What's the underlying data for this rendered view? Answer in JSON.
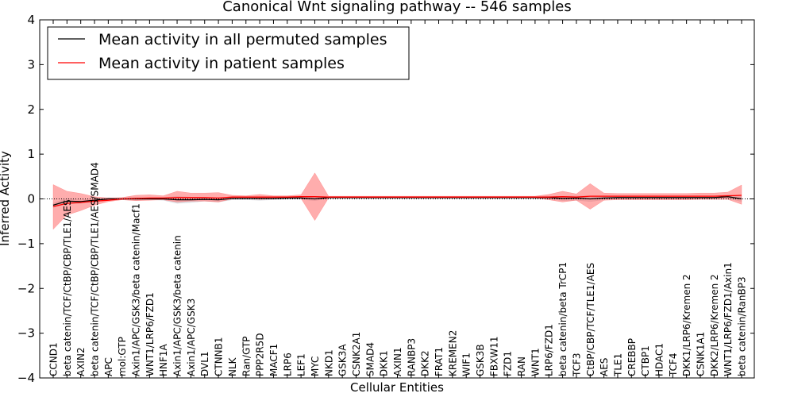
{
  "chart_data": {
    "type": "line",
    "title": "Canonical Wnt signaling pathway -- 546 samples",
    "xlabel": "Cellular Entities",
    "ylabel": "Inferred Activity",
    "ylim": [
      -4,
      4
    ],
    "yticks": [
      -4,
      -3,
      -2,
      -1,
      0,
      1,
      2,
      3,
      4
    ],
    "ytick_labels": [
      "−4",
      "−3",
      "−2",
      "−1",
      "0",
      "1",
      "2",
      "3",
      "4"
    ],
    "legend_position": "top-left",
    "categories": [
      "CCND1",
      "beta catenin/TCF/CtBP/CBP/TLE1/AES",
      "AXIN2",
      "beta catenin/TCF/CtBP/CBP/TLE1/AES/SMAD4",
      "APC",
      "mol:GTP",
      "Axin1/APC/GSK3/beta catenin/Macf1",
      "WNT1/LRP6/FZD1",
      "HNF1A",
      "Axin1/APC/GSK3/beta catenin",
      "Axin1/APC/GSK3",
      "DVL1",
      "CTNNB1",
      "NLK",
      "Ran/GTP",
      "PPP2R5D",
      "MACF1",
      "LRP6",
      "LEF1",
      "MYC",
      "NKD1",
      "GSK3A",
      "CSNK2A1",
      "SMAD4",
      "DKK1",
      "AXIN1",
      "RANBP3",
      "DKK2",
      "FRAT1",
      "KREMEN2",
      "WIF1",
      "GSK3B",
      "FBXW11",
      "FZD1",
      "RAN",
      "WNT1",
      "LRP6/FZD1",
      "beta catenin/beta TrCP1",
      "TCF3",
      "CtBP/CBP/TCF/TLE1/AES",
      "AES",
      "TLE1",
      "CREBBP",
      "CTBP1",
      "HDAC1",
      "TCF4",
      "DKK1/LRP6/Kremen 2",
      "CSNK1A1",
      "DKK2/LRP6/Kremen 2",
      "WNT1/LRP6/FZD1/Axin1",
      "beta catenin/RanBP3"
    ],
    "series": [
      {
        "name": "Mean activity in all permuted samples",
        "color": "#000000",
        "values": [
          -0.14,
          -0.05,
          -0.06,
          -0.03,
          0.0,
          0.0,
          0.0,
          0.0,
          0.0,
          -0.02,
          -0.02,
          -0.01,
          -0.02,
          0.01,
          0.01,
          0.01,
          0.01,
          0.02,
          0.02,
          0.0,
          0.03,
          0.03,
          0.03,
          0.03,
          0.03,
          0.03,
          0.03,
          0.03,
          0.03,
          0.03,
          0.03,
          0.03,
          0.03,
          0.03,
          0.03,
          0.03,
          0.03,
          0.01,
          0.02,
          0.0,
          0.02,
          0.03,
          0.03,
          0.03,
          0.03,
          0.03,
          0.03,
          0.03,
          0.03,
          0.05,
          0.0
        ],
        "band_color": "#c8c8d0",
        "band_low": [
          -0.19,
          -0.11,
          -0.1,
          -0.07,
          -0.03,
          -0.02,
          -0.03,
          -0.02,
          -0.03,
          -0.1,
          -0.08,
          -0.05,
          -0.07,
          -0.02,
          -0.02,
          -0.03,
          -0.02,
          -0.01,
          -0.01,
          -0.04,
          0.01,
          0.01,
          0.01,
          0.01,
          0.01,
          0.01,
          0.01,
          0.01,
          0.01,
          0.01,
          0.01,
          0.01,
          0.01,
          0.01,
          0.01,
          0.01,
          0.0,
          -0.04,
          -0.03,
          -0.06,
          -0.02,
          0.0,
          0.0,
          0.0,
          0.0,
          0.0,
          0.0,
          0.0,
          0.0,
          0.01,
          -0.06
        ],
        "band_high": [
          -0.09,
          0.01,
          -0.02,
          0.01,
          0.03,
          0.02,
          0.03,
          0.02,
          0.03,
          0.06,
          0.04,
          0.03,
          0.03,
          0.04,
          0.04,
          0.05,
          0.04,
          0.05,
          0.05,
          0.04,
          0.05,
          0.05,
          0.05,
          0.05,
          0.05,
          0.05,
          0.05,
          0.05,
          0.05,
          0.05,
          0.05,
          0.05,
          0.05,
          0.05,
          0.05,
          0.05,
          0.06,
          0.06,
          0.07,
          0.06,
          0.06,
          0.06,
          0.06,
          0.06,
          0.06,
          0.06,
          0.06,
          0.06,
          0.06,
          0.09,
          0.06
        ]
      },
      {
        "name": "Mean activity in patient samples",
        "color": "#ff0000",
        "values": [
          -0.17,
          -0.1,
          -0.08,
          -0.05,
          -0.03,
          0.0,
          0.01,
          0.02,
          0.02,
          0.03,
          0.03,
          0.03,
          0.02,
          0.04,
          0.04,
          0.04,
          0.04,
          0.04,
          0.05,
          0.05,
          0.04,
          0.04,
          0.04,
          0.04,
          0.04,
          0.04,
          0.04,
          0.04,
          0.04,
          0.04,
          0.04,
          0.04,
          0.04,
          0.04,
          0.04,
          0.04,
          0.04,
          0.05,
          0.04,
          0.06,
          0.06,
          0.06,
          0.06,
          0.06,
          0.06,
          0.06,
          0.06,
          0.06,
          0.06,
          0.07,
          0.08
        ],
        "band_color": "#ff6a6a",
        "band_low": [
          -0.68,
          -0.36,
          -0.26,
          -0.14,
          -0.06,
          -0.02,
          -0.04,
          -0.03,
          -0.02,
          -0.07,
          -0.05,
          -0.05,
          -0.07,
          0.0,
          0.01,
          -0.01,
          0.0,
          0.02,
          0.01,
          -0.48,
          0.02,
          0.02,
          0.02,
          0.02,
          0.02,
          0.02,
          0.02,
          0.02,
          0.02,
          0.02,
          0.02,
          0.02,
          0.02,
          0.02,
          0.02,
          0.02,
          -0.02,
          -0.07,
          -0.03,
          -0.23,
          -0.03,
          -0.02,
          -0.02,
          -0.02,
          -0.02,
          -0.02,
          -0.02,
          -0.01,
          -0.01,
          -0.01,
          -0.12
        ],
        "band_high": [
          0.32,
          0.17,
          0.12,
          0.05,
          0.02,
          0.03,
          0.08,
          0.09,
          0.07,
          0.17,
          0.13,
          0.13,
          0.14,
          0.08,
          0.07,
          0.1,
          0.07,
          0.07,
          0.09,
          0.58,
          0.06,
          0.06,
          0.06,
          0.06,
          0.06,
          0.06,
          0.06,
          0.06,
          0.06,
          0.06,
          0.06,
          0.06,
          0.06,
          0.06,
          0.06,
          0.06,
          0.1,
          0.17,
          0.11,
          0.34,
          0.13,
          0.12,
          0.12,
          0.12,
          0.12,
          0.12,
          0.12,
          0.13,
          0.13,
          0.15,
          0.31
        ]
      }
    ],
    "reference_line": {
      "y": 0,
      "style": "dotted",
      "color": "#000000"
    }
  }
}
